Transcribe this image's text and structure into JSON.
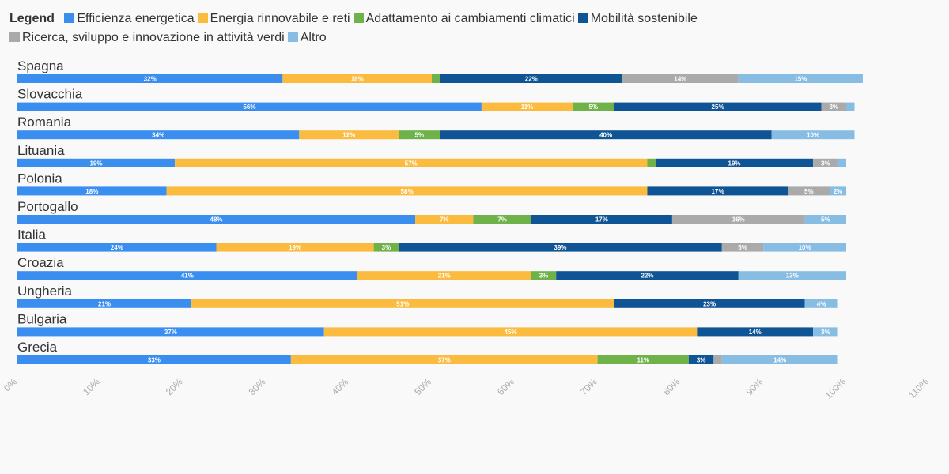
{
  "legend_title": "Legend",
  "chart_data": {
    "type": "bar",
    "orientation": "horizontal",
    "stacked": true,
    "categories": [
      "Spagna",
      "Slovacchia",
      "Romania",
      "Lituania",
      "Polonia",
      "Portogallo",
      "Italia",
      "Croazia",
      "Ungheria",
      "Bulgaria",
      "Grecia"
    ],
    "series": [
      {
        "name": "Efficienza energetica",
        "color": "#3a8ef0",
        "values": [
          32,
          56,
          34,
          19,
          18,
          48,
          24,
          41,
          21,
          37,
          33
        ],
        "labels": [
          "32%",
          "56%",
          "34%",
          "19%",
          "18%",
          "48%",
          "24%",
          "41%",
          "21%",
          "37%",
          "33%"
        ]
      },
      {
        "name": "Energia rinnovabile e reti",
        "color": "#fbbb3e",
        "values": [
          18,
          11,
          12,
          57,
          58,
          7,
          19,
          21,
          51,
          45,
          37
        ],
        "labels": [
          "18%",
          "11%",
          "12%",
          "57%",
          "58%",
          "7%",
          "19%",
          "21%",
          "51%",
          "45%",
          "37%"
        ]
      },
      {
        "name": "Adattamento ai cambiamenti climatici",
        "color": "#6fb24a",
        "values": [
          1,
          5,
          5,
          1,
          0,
          7,
          3,
          3,
          0,
          0,
          11
        ],
        "labels": [
          "",
          "5%",
          "5%",
          "",
          "",
          "7%",
          "3%",
          "3%",
          "",
          "",
          "11%"
        ]
      },
      {
        "name": "Mobilità sostenibile",
        "color": "#0f5494",
        "values": [
          22,
          25,
          40,
          19,
          17,
          17,
          39,
          22,
          23,
          14,
          3
        ],
        "labels": [
          "22%",
          "25%",
          "40%",
          "19%",
          "17%",
          "17%",
          "39%",
          "22%",
          "23%",
          "14%",
          "3%"
        ]
      },
      {
        "name": "Ricerca, sviluppo e innovazione in attività verdi",
        "color": "#aaaaaa",
        "values": [
          14,
          3,
          0,
          3,
          5,
          16,
          5,
          0,
          0,
          0,
          1
        ],
        "labels": [
          "14%",
          "3%",
          "",
          "3%",
          "5%",
          "16%",
          "5%",
          "",
          "",
          "",
          ""
        ]
      },
      {
        "name": "Altro",
        "color": "#87bde3",
        "values": [
          15,
          1,
          10,
          1,
          2,
          5,
          10,
          13,
          4,
          3,
          14
        ],
        "labels": [
          "15%",
          "",
          "10%",
          "",
          "2%",
          "5%",
          "10%",
          "13%",
          "4%",
          "3%",
          "14%"
        ]
      }
    ],
    "xlim": [
      0,
      110
    ],
    "xticks": [
      "0%",
      "10%",
      "20%",
      "30%",
      "40%",
      "50%",
      "60%",
      "70%",
      "80%",
      "90%",
      "100%",
      "110%"
    ],
    "grid": false,
    "legend_position": "top-left",
    "label_colors": {
      "light": "#ffffff",
      "dark": "#8a6a20"
    }
  }
}
